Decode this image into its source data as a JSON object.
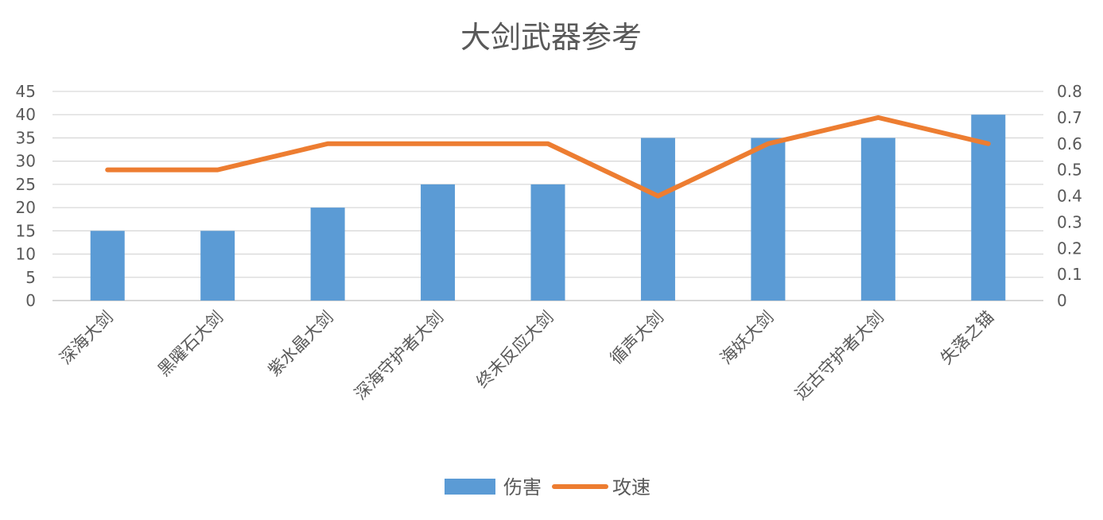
{
  "chart_data": {
    "type": "bar",
    "title": "大剑武器参考",
    "categories": [
      "深海大剑",
      "黑曜石大剑",
      "紫水晶大剑",
      "深海守护者大剑",
      "终末反应大剑",
      "循声大剑",
      "海妖大剑",
      "远古守护者大剑",
      "失落之锚"
    ],
    "series": [
      {
        "name": "伤害",
        "type": "bar",
        "axis": "left",
        "color": "#5B9BD5",
        "values": [
          15,
          15,
          20,
          25,
          25,
          35,
          35,
          35,
          40
        ]
      },
      {
        "name": "攻速",
        "type": "line",
        "axis": "right",
        "color": "#ED7D31",
        "values": [
          0.5,
          0.5,
          0.6,
          0.6,
          0.6,
          0.4,
          0.6,
          0.7,
          0.6
        ]
      }
    ],
    "y_left": {
      "min": 0,
      "max": 45,
      "ticks": [
        "0",
        "5",
        "10",
        "15",
        "20",
        "25",
        "30",
        "35",
        "40",
        "45"
      ]
    },
    "y_right": {
      "min": 0,
      "max": 0.8,
      "ticks": [
        "0",
        "0.1",
        "0.2",
        "0.3",
        "0.4",
        "0.5",
        "0.6",
        "0.7",
        "0.8"
      ]
    },
    "grid": true,
    "legend_position": "bottom"
  }
}
